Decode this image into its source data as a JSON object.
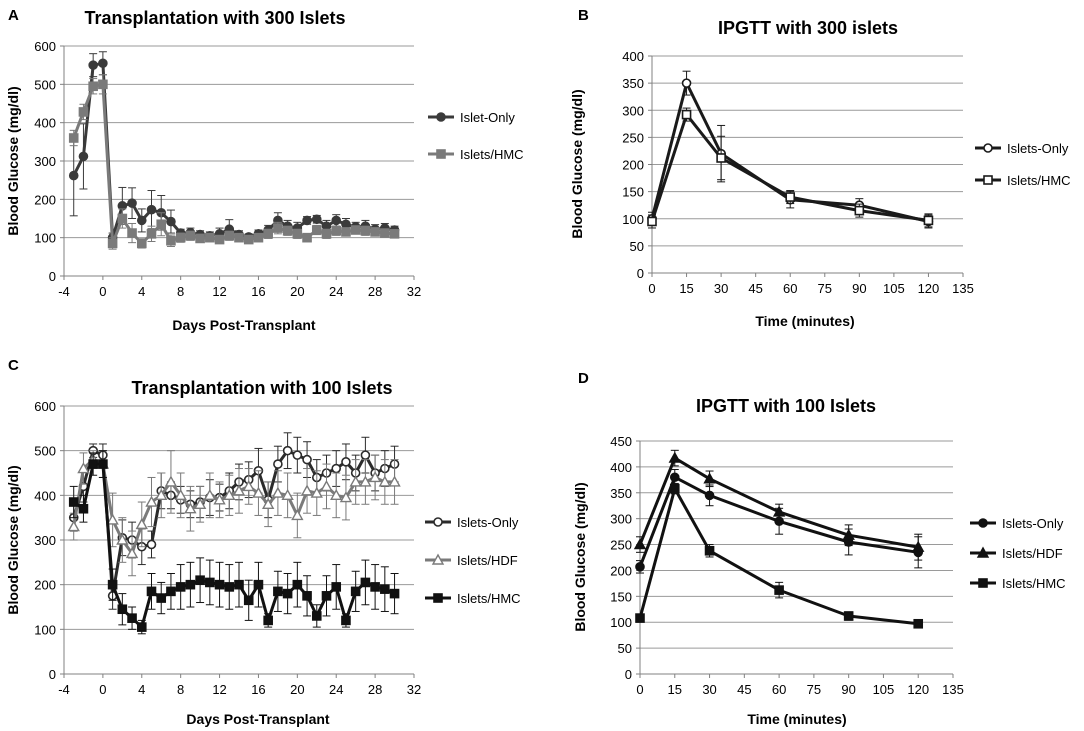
{
  "chart_data": [
    {
      "panel": "A",
      "type": "line",
      "title": "Transplantation with 300 Islets",
      "xlabel": "Days Post-Transplant",
      "ylabel": "Blood Glucose (mg/dl)",
      "xlim": [
        -4,
        32
      ],
      "ylim": [
        0,
        600
      ],
      "xticks": [
        -4,
        0,
        4,
        8,
        12,
        16,
        20,
        24,
        28,
        32
      ],
      "yticks": [
        0,
        100,
        200,
        300,
        400,
        500,
        600
      ],
      "grid": true,
      "legend_position": "right",
      "series": [
        {
          "name": "Islet-Only",
          "marker": "circle",
          "color": "#3a3a3a",
          "x": [
            -3,
            -2,
            -1,
            0,
            1,
            2,
            3,
            4,
            5,
            6,
            7,
            8,
            9,
            10,
            11,
            12,
            13,
            14,
            15,
            16,
            17,
            18,
            19,
            20,
            21,
            22,
            23,
            24,
            25,
            26,
            27,
            28,
            29,
            30
          ],
          "y": [
            262,
            312,
            550,
            555,
            100,
            183,
            190,
            145,
            173,
            165,
            142,
            112,
            113,
            108,
            105,
            110,
            122,
            108,
            102,
            110,
            120,
            145,
            130,
            125,
            145,
            148,
            130,
            145,
            135,
            128,
            130,
            122,
            125,
            120
          ],
          "err": [
            105,
            85,
            30,
            30,
            12,
            48,
            40,
            30,
            50,
            45,
            30,
            10,
            12,
            10,
            10,
            15,
            25,
            10,
            8,
            10,
            12,
            20,
            15,
            15,
            10,
            10,
            15,
            15,
            15,
            12,
            15,
            12,
            12,
            10
          ]
        },
        {
          "name": "Islets/HMC",
          "marker": "square",
          "color": "#7a7a7a",
          "x": [
            -3,
            -2,
            -1,
            0,
            1,
            2,
            3,
            4,
            5,
            6,
            7,
            8,
            9,
            10,
            11,
            12,
            13,
            14,
            15,
            16,
            17,
            18,
            19,
            20,
            21,
            22,
            23,
            24,
            25,
            26,
            27,
            28,
            29,
            30
          ],
          "y": [
            360,
            428,
            495,
            500,
            85,
            150,
            112,
            85,
            110,
            135,
            92,
            100,
            105,
            98,
            100,
            95,
            105,
            100,
            95,
            100,
            110,
            125,
            118,
            110,
            100,
            120,
            110,
            118,
            115,
            120,
            118,
            115,
            112,
            110
          ],
          "err": [
            20,
            20,
            20,
            25,
            15,
            25,
            25,
            12,
            20,
            30,
            15,
            12,
            12,
            10,
            10,
            10,
            12,
            10,
            8,
            10,
            12,
            15,
            12,
            12,
            10,
            12,
            12,
            12,
            10,
            10,
            12,
            10,
            10,
            10
          ]
        }
      ]
    },
    {
      "panel": "B",
      "type": "line",
      "title": "IPGTT with 300 islets",
      "xlabel": "Time (minutes)",
      "ylabel": "Blood Glucose (mg/dl)",
      "xlim": [
        0,
        135
      ],
      "ylim": [
        0,
        400
      ],
      "xticks": [
        0,
        15,
        30,
        45,
        60,
        75,
        90,
        105,
        120,
        135
      ],
      "yticks": [
        0,
        50,
        100,
        150,
        200,
        250,
        300,
        350,
        400
      ],
      "grid": true,
      "legend_position": "right",
      "series": [
        {
          "name": "Islets-Only",
          "marker": "circle-open",
          "color": "#1a1a1a",
          "x": [
            0,
            15,
            30,
            60,
            90,
            120
          ],
          "y": [
            100,
            350,
            220,
            135,
            125,
            95
          ],
          "err": [
            12,
            22,
            52,
            15,
            12,
            12
          ]
        },
        {
          "name": "Islets/HMC",
          "marker": "square-open",
          "color": "#1a1a1a",
          "x": [
            0,
            15,
            30,
            60,
            90,
            120
          ],
          "y": [
            95,
            292,
            212,
            140,
            115,
            97
          ],
          "err": [
            12,
            12,
            40,
            12,
            12,
            12
          ]
        }
      ]
    },
    {
      "panel": "C",
      "type": "line",
      "title": "Transplantation with 100 Islets",
      "xlabel": "Days Post-Transplant",
      "ylabel": "Blood Glucose (mg/dl)",
      "xlim": [
        -4,
        32
      ],
      "ylim": [
        0,
        600
      ],
      "xticks": [
        -4,
        0,
        4,
        8,
        12,
        16,
        20,
        24,
        28,
        32
      ],
      "yticks": [
        0,
        100,
        200,
        300,
        400,
        500,
        600
      ],
      "grid": true,
      "legend_position": "right",
      "series": [
        {
          "name": "Islets-Only",
          "marker": "circle-open",
          "color": "#2b2b2b",
          "x": [
            -3,
            -2,
            -1,
            0,
            1,
            2,
            3,
            4,
            5,
            6,
            7,
            8,
            9,
            10,
            11,
            12,
            13,
            14,
            15,
            16,
            17,
            18,
            19,
            20,
            21,
            22,
            23,
            24,
            25,
            26,
            27,
            28,
            29,
            30
          ],
          "y": [
            350,
            420,
            500,
            490,
            175,
            305,
            300,
            285,
            290,
            410,
            400,
            390,
            380,
            385,
            395,
            395,
            410,
            430,
            435,
            455,
            390,
            470,
            500,
            490,
            480,
            440,
            450,
            460,
            475,
            450,
            490,
            450,
            460,
            470
          ],
          "err": [
            30,
            35,
            15,
            25,
            30,
            40,
            40,
            40,
            30,
            40,
            30,
            30,
            30,
            35,
            40,
            30,
            40,
            40,
            40,
            50,
            40,
            40,
            40,
            40,
            40,
            40,
            40,
            40,
            40,
            40,
            40,
            40,
            40,
            40
          ]
        },
        {
          "name": "Islets/HDF",
          "marker": "triangle-open",
          "color": "#7a7a7a",
          "x": [
            -3,
            -2,
            -1,
            0,
            1,
            2,
            3,
            4,
            5,
            6,
            7,
            8,
            9,
            10,
            11,
            12,
            13,
            14,
            15,
            16,
            17,
            18,
            19,
            20,
            21,
            22,
            23,
            24,
            25,
            26,
            27,
            28,
            29,
            30
          ],
          "y": [
            330,
            460,
            480,
            470,
            345,
            300,
            270,
            335,
            385,
            400,
            430,
            400,
            370,
            380,
            400,
            390,
            400,
            410,
            420,
            405,
            380,
            405,
            400,
            355,
            410,
            405,
            420,
            400,
            395,
            430,
            430,
            440,
            430,
            430
          ],
          "err": [
            30,
            35,
            20,
            30,
            60,
            50,
            50,
            50,
            55,
            50,
            70,
            50,
            50,
            40,
            50,
            40,
            45,
            50,
            40,
            50,
            50,
            50,
            50,
            50,
            50,
            50,
            50,
            50,
            50,
            50,
            50,
            50,
            50,
            50
          ]
        },
        {
          "name": "Islets/HMC",
          "marker": "square",
          "color": "#111111",
          "x": [
            -3,
            -2,
            -1,
            0,
            1,
            2,
            3,
            4,
            5,
            6,
            7,
            8,
            9,
            10,
            11,
            12,
            13,
            14,
            15,
            16,
            17,
            18,
            19,
            20,
            21,
            22,
            23,
            24,
            25,
            26,
            27,
            28,
            29,
            30
          ],
          "y": [
            385,
            370,
            470,
            470,
            200,
            145,
            125,
            105,
            185,
            170,
            185,
            195,
            200,
            210,
            205,
            200,
            195,
            200,
            165,
            200,
            120,
            185,
            180,
            200,
            175,
            130,
            175,
            195,
            120,
            185,
            205,
            195,
            190,
            180
          ],
          "err": [
            35,
            30,
            25,
            30,
            35,
            35,
            25,
            15,
            40,
            35,
            40,
            50,
            50,
            50,
            50,
            50,
            50,
            50,
            45,
            50,
            15,
            45,
            45,
            50,
            45,
            25,
            45,
            50,
            15,
            45,
            50,
            50,
            50,
            45
          ]
        }
      ]
    },
    {
      "panel": "D",
      "type": "line",
      "title": "IPGTT with 100 Islets",
      "xlabel": "Time (minutes)",
      "ylabel": "Blood Glucose (mg/dl)",
      "xlim": [
        0,
        135
      ],
      "ylim": [
        0,
        450
      ],
      "xticks": [
        0,
        15,
        30,
        45,
        60,
        75,
        90,
        105,
        120,
        135
      ],
      "yticks": [
        0,
        50,
        100,
        150,
        200,
        250,
        300,
        350,
        400,
        450
      ],
      "grid": true,
      "legend_position": "right",
      "series": [
        {
          "name": "Islets-Only",
          "marker": "circle",
          "color": "#111111",
          "x": [
            0,
            15,
            30,
            60,
            90,
            120
          ],
          "y": [
            207,
            380,
            345,
            295,
            255,
            235
          ],
          "err": [
            12,
            15,
            20,
            25,
            25,
            30
          ]
        },
        {
          "name": "Islets/HDF",
          "marker": "triangle",
          "color": "#111111",
          "x": [
            0,
            15,
            30,
            60,
            90,
            120
          ],
          "y": [
            250,
            417,
            377,
            313,
            268,
            245
          ],
          "err": [
            15,
            15,
            15,
            15,
            20,
            25
          ]
        },
        {
          "name": "Islets/HMC",
          "marker": "square",
          "color": "#111111",
          "x": [
            0,
            15,
            30,
            60,
            90,
            120
          ],
          "y": [
            108,
            358,
            238,
            162,
            112,
            97
          ],
          "err": [
            5,
            10,
            12,
            15,
            8,
            5
          ]
        }
      ]
    }
  ]
}
